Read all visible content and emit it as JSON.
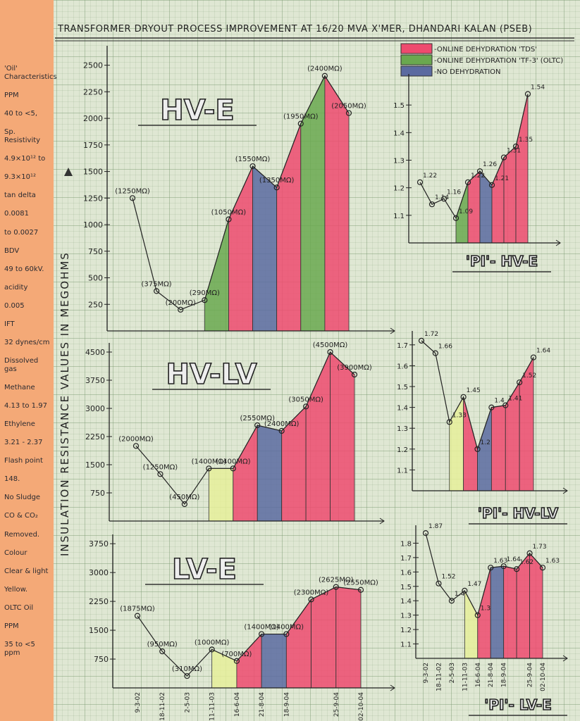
{
  "title": "TRANSFORMER DRYOUT PROCESS IMPROVEMENT AT 16/20 MVA X'MER, DHANDARI KALAN (PSEB)",
  "y_axis_label": "INSULATION RESISTANCE VALUES IN MEGOHMS",
  "legend": [
    {
      "name": "-ONLINE DEHYDRATION 'TDS'",
      "color": "#ee4a6e"
    },
    {
      "name": "-ONLINE DEHYDRATION 'TF-3' (OLTC)",
      "color": "#6aa84f"
    },
    {
      "name": "-NO DEHYDRATION",
      "color": "#5b6aa0"
    }
  ],
  "side_notes": [
    "'Oil' Characteristics",
    "PPM",
    "40 to <5,",
    "Sp. Resistivity",
    "4.9×10¹² to",
    "9.3×10¹²",
    "tan delta",
    "0.0081",
    "to 0.0027",
    "BDV",
    "49 to 60kV.",
    "acidity",
    "0.005",
    "IFT",
    "32 dynes/cm",
    "Dissolved gas",
    "Methane",
    "4.13 to 1.97",
    "Ethylene",
    "3.21 - 2.37",
    "Flash point",
    "148.",
    "No Sludge",
    "CO & CO₂",
    "Removed.",
    "Colour",
    "Clear & light",
    "Yellow.",
    "OLTC Oil",
    "PPM",
    "35 to <5 ppm"
  ],
  "chart_data": [
    {
      "type": "line",
      "title": "HV-E",
      "values": [
        1250,
        375,
        200,
        290,
        1050,
        1550,
        1350,
        1950,
        2400,
        2050
      ],
      "value_labels": [
        "(1250MΩ)",
        "(375MΩ)",
        "(200MΩ)",
        "(290MΩ)",
        "(1050MΩ)",
        "(1550MΩ)",
        "(1350MΩ)",
        "(1950MΩ)",
        "(2400MΩ)",
        "(2050MΩ)"
      ],
      "fills": [
        null,
        null,
        null,
        "#6aa84f",
        "#ee4a6e",
        "#5b6aa0",
        "#ee4a6e",
        "#6aa84f",
        "#ee4a6e"
      ],
      "ylim": [
        0,
        2650
      ],
      "yticks": [
        250,
        500,
        750,
        1000,
        1250,
        1500,
        1750,
        2000,
        2250,
        2500
      ]
    },
    {
      "type": "line",
      "title": "HV-LV",
      "values": [
        2000,
        1250,
        450,
        1400,
        1400,
        2550,
        2400,
        3050,
        4500,
        3900
      ],
      "value_labels": [
        "(2000MΩ)",
        "(1250MΩ)",
        "(450MΩ)",
        "(1400MΩ)",
        "(1400MΩ)",
        "(2550MΩ)",
        "(2400MΩ)",
        "(3050MΩ)",
        "(4500MΩ)",
        "(3900MΩ)"
      ],
      "fills": [
        null,
        null,
        null,
        "#e6ee9a",
        "#ee4a6e",
        "#5b6aa0",
        "#ee4a6e",
        "#ee4a6e",
        "#ee4a6e"
      ],
      "ylim": [
        0,
        4650
      ],
      "yticks": [
        750,
        1500,
        2250,
        3000,
        3750,
        4500
      ]
    },
    {
      "type": "line",
      "title": "LV-E",
      "categories": [
        "9-3-02",
        "18-11-02",
        "2-5-03",
        "11-11-03",
        "16-6-04",
        "21-8-04",
        "18-9-04",
        null,
        "25-9-04",
        "02-10-04"
      ],
      "values": [
        1875,
        950,
        310,
        1000,
        700,
        1400,
        1400,
        2300,
        2625,
        2550
      ],
      "value_labels": [
        "(1875MΩ)",
        "(950MΩ)",
        "(310MΩ)",
        "(1000MΩ)",
        "(700MΩ)",
        "(1400MΩ)",
        "(1400MΩ)",
        "(2300MΩ)",
        "(2625MΩ)",
        "(2550MΩ)"
      ],
      "fills": [
        null,
        null,
        null,
        "#e6ee9a",
        "#ee4a6e",
        "#5b6aa0",
        "#ee4a6e",
        "#ee4a6e",
        "#ee4a6e"
      ],
      "ylim": [
        0,
        3900
      ],
      "yticks": [
        750,
        1500,
        2250,
        3000,
        3750
      ]
    },
    {
      "type": "line",
      "title": "'PI'- HV-E",
      "values": [
        1.22,
        1.14,
        1.16,
        1.09,
        1.22,
        1.26,
        1.21,
        1.31,
        1.35,
        1.54
      ],
      "fills": [
        null,
        null,
        null,
        "#6aa84f",
        "#ee4a6e",
        "#5b6aa0",
        "#ee4a6e",
        "#ee4a6e",
        "#ee4a6e"
      ],
      "ylim": [
        1.0,
        1.6
      ],
      "yticks": [
        1.1,
        1.2,
        1.3,
        1.4,
        1.5
      ]
    },
    {
      "type": "line",
      "title": "'PI'- HV-LV",
      "values": [
        1.72,
        1.66,
        1.33,
        1.45,
        1.2,
        1.4,
        1.41,
        1.52,
        1.64
      ],
      "fills": [
        null,
        null,
        "#e6ee9a",
        "#ee4a6e",
        "#5b6aa0",
        "#ee4a6e",
        "#ee4a6e",
        "#ee4a6e"
      ],
      "ylim": [
        1.0,
        1.75
      ],
      "yticks": [
        1.1,
        1.2,
        1.3,
        1.4,
        1.5,
        1.6,
        1.7
      ]
    },
    {
      "type": "line",
      "title": "'PI'- LV-E",
      "categories": [
        "9-3-02",
        "18-11-02",
        "2-5-03",
        "11-11-03",
        "16-6-04",
        "21-8-04",
        "18-9-04",
        null,
        "25-9-04",
        "02-10-04"
      ],
      "values": [
        1.87,
        1.52,
        1.4,
        1.47,
        1.3,
        1.63,
        1.64,
        1.62,
        1.73,
        1.63
      ],
      "fills": [
        null,
        null,
        null,
        "#e6ee9a",
        "#ee4a6e",
        "#5b6aa0",
        "#ee4a6e",
        "#ee4a6e",
        "#ee4a6e"
      ],
      "ylim": [
        1.0,
        1.9
      ],
      "yticks": [
        1.1,
        1.2,
        1.3,
        1.4,
        1.5,
        1.6,
        1.7,
        1.8
      ]
    }
  ]
}
